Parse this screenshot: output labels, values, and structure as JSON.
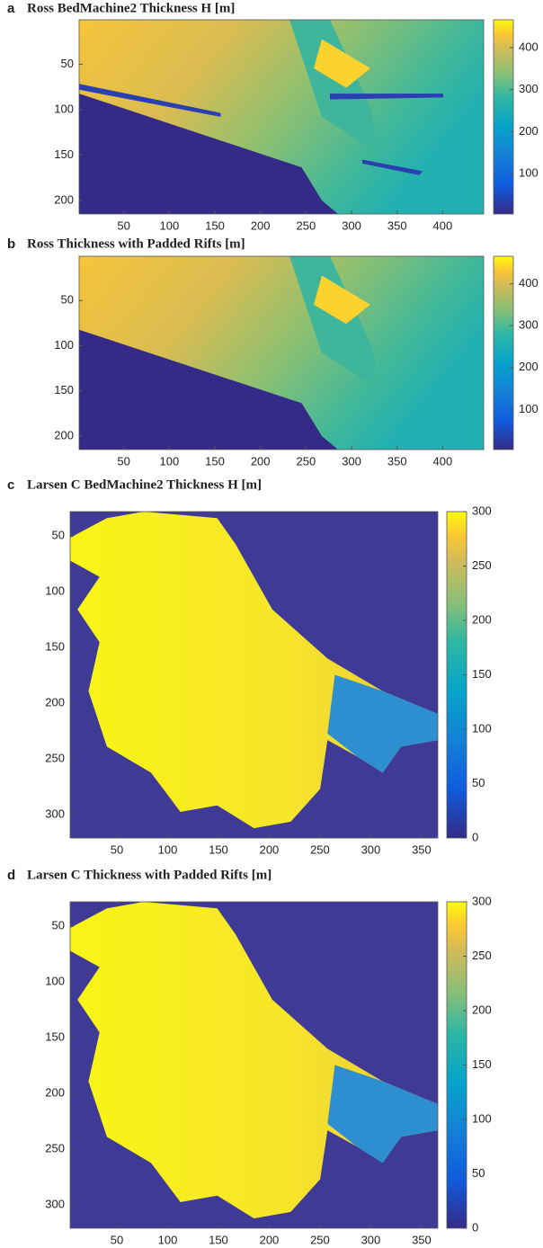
{
  "chart_data": [
    {
      "type": "heatmap",
      "panel_label": "a",
      "title": "Ross BedMachine2 Thickness H [m]",
      "xlim": [
        1,
        445
      ],
      "ylim": [
        1,
        215
      ],
      "xticks": [
        50,
        100,
        150,
        200,
        250,
        300,
        350,
        400
      ],
      "yticks": [
        50,
        100,
        150,
        200
      ],
      "colorbar": {
        "clim": [
          4,
          466
        ],
        "ticks": [
          100,
          200,
          300,
          400
        ]
      }
    },
    {
      "type": "heatmap",
      "panel_label": "b",
      "title": "Ross Thickness with Padded Rifts [m]",
      "xlim": [
        1,
        445
      ],
      "ylim": [
        1,
        215
      ],
      "xticks": [
        50,
        100,
        150,
        200,
        250,
        300,
        350,
        400
      ],
      "yticks": [
        50,
        100,
        150,
        200
      ],
      "colorbar": {
        "clim": [
          4,
          466
        ],
        "ticks": [
          100,
          200,
          300,
          400
        ]
      }
    },
    {
      "type": "heatmap",
      "panel_label": "c",
      "title": "Larsen C BedMachine2 Thickness H [m]",
      "xlim": [
        4,
        366
      ],
      "ylim": [
        28,
        321
      ],
      "xticks": [
        50,
        100,
        150,
        200,
        250,
        300,
        350
      ],
      "yticks": [
        50,
        100,
        150,
        200,
        250,
        300
      ],
      "colorbar": {
        "clim": [
          0,
          300
        ],
        "ticks": [
          0,
          50,
          100,
          150,
          200,
          250,
          300
        ]
      }
    },
    {
      "type": "heatmap",
      "panel_label": "d",
      "title": "Larsen C Thickness with Padded Rifts [m]",
      "xlim": [
        4,
        366
      ],
      "ylim": [
        28,
        321
      ],
      "xticks": [
        50,
        100,
        150,
        200,
        250,
        300,
        350
      ],
      "yticks": [
        50,
        100,
        150,
        200,
        250,
        300
      ],
      "colorbar": {
        "clim": [
          0,
          300
        ],
        "ticks": [
          0,
          50,
          100,
          150,
          200,
          250,
          300
        ]
      }
    }
  ]
}
